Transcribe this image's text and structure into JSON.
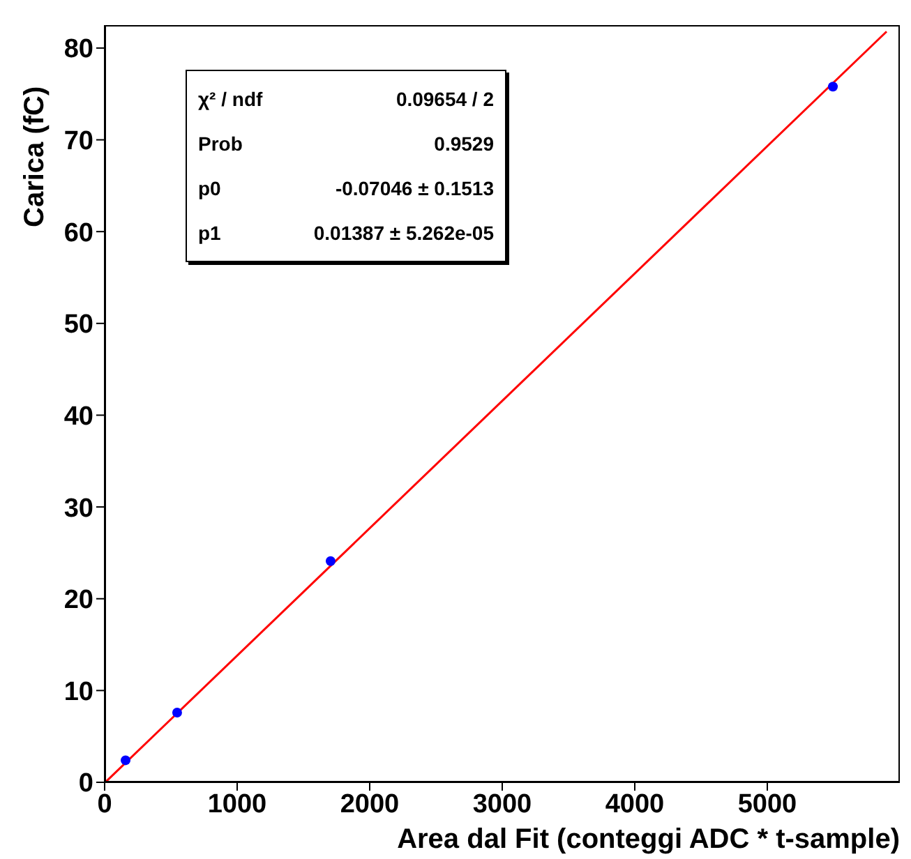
{
  "chart_data": {
    "type": "scatter",
    "xlabel": "Area dal Fit (conteggi ADC * t-sample)",
    "ylabel": "Carica (fC)",
    "xlim": [
      0,
      6000
    ],
    "xticks": [
      0,
      1000,
      2000,
      3000,
      4000,
      5000
    ],
    "ylim": [
      0,
      82.5
    ],
    "yticks": [
      0,
      10,
      20,
      30,
      40,
      50,
      60,
      70,
      80
    ],
    "grid": false,
    "legend": false,
    "series": [
      {
        "color": "#0000ff",
        "marker": "circle",
        "x": [
          158,
          547,
          1705,
          5495
        ],
        "values": [
          2.4,
          7.6,
          24.1,
          75.8
        ]
      },
      {
        "type": "line",
        "color": "#ff0000",
        "marker": "none",
        "line_style": "solid",
        "x": [
          5,
          5900
        ],
        "values": [
          0,
          81.8
        ]
      }
    ],
    "annotations": [
      "χ² / ndf",
      "0.09654 / 2",
      "Prob",
      "0.9529",
      "p0",
      "-0.07046 ± 0.1513",
      "p1",
      "0.01387 ± 5.262e-05"
    ]
  }
}
